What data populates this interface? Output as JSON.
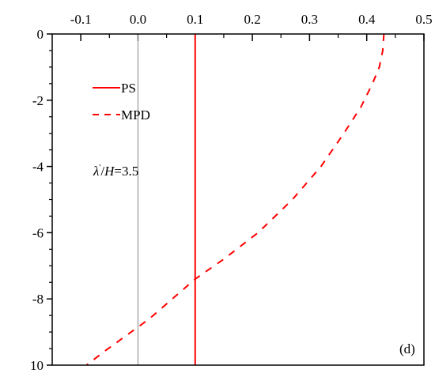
{
  "chart_data": {
    "type": "line",
    "title": "",
    "xlabel": "",
    "ylabel": "",
    "x_axis_position": "top",
    "y_axis_inverted": true,
    "xlim": [
      -0.15,
      0.5
    ],
    "ylim": [
      0,
      10
    ],
    "x_ticks": [
      -0.1,
      0.0,
      0.1,
      0.2,
      0.3,
      0.4,
      0.5
    ],
    "x_tick_labels": [
      "-0.1",
      "0.0",
      "0.1",
      "0.2",
      "0.3",
      "0.4",
      "0.5"
    ],
    "y_ticks": [
      0,
      2,
      4,
      6,
      8,
      10
    ],
    "y_tick_labels": [
      "0",
      "-2",
      "-4",
      "-6",
      "-8",
      "10"
    ],
    "reference_line_x": 0.0,
    "grid": false,
    "legend": {
      "position": "top-left",
      "entries": [
        {
          "name": "PS",
          "style": "solid",
          "color": "#ff0000"
        },
        {
          "name": "MPD",
          "style": "dashed",
          "color": "#ff0000"
        }
      ]
    },
    "series": [
      {
        "name": "PS",
        "style": "solid",
        "color": "#ff0000",
        "x": [
          0.1,
          0.1
        ],
        "y": [
          0,
          10
        ]
      },
      {
        "name": "MPD",
        "style": "dashed",
        "color": "#ff0000",
        "x": [
          0.43,
          0.428,
          0.422,
          0.41,
          0.39,
          0.36,
          0.32,
          0.27,
          0.21,
          0.15,
          0.1,
          0.06,
          0.02,
          -0.02,
          -0.06,
          -0.09
        ],
        "y": [
          0.0,
          0.5,
          1.0,
          1.5,
          2.2,
          3.0,
          4.0,
          5.0,
          6.0,
          6.8,
          7.4,
          8.0,
          8.6,
          9.1,
          9.6,
          10.0
        ]
      }
    ],
    "annotations": [
      {
        "lambda_symbol": "λ",
        "prime": "'",
        "separator": "/",
        "H_symbol": "H",
        "value_text": "=3.5"
      },
      {
        "text": "(d)"
      }
    ]
  }
}
